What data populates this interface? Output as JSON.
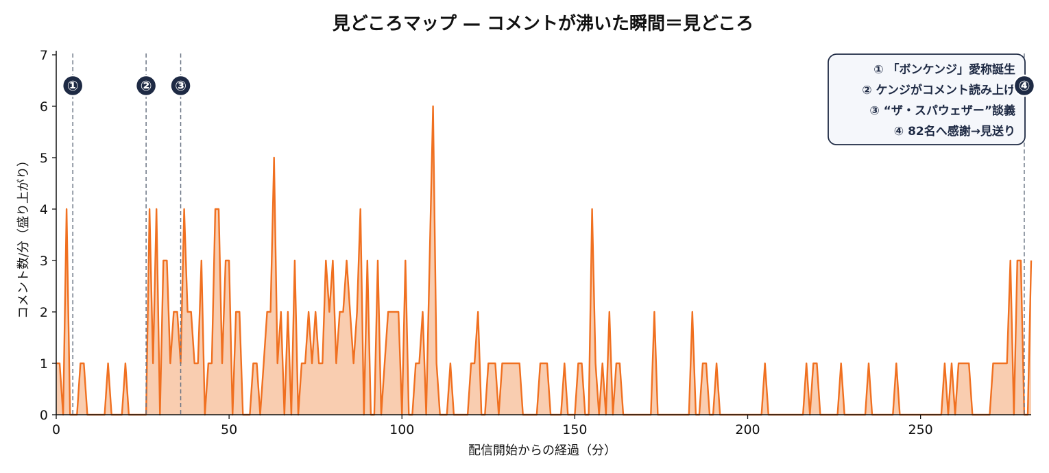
{
  "chart_data": {
    "type": "area",
    "title": "見どころマップ — コメントが沸いた瞬間＝見どころ",
    "xlabel": "配信開始からの経過（分）",
    "ylabel": "コメント数/分（盛り上がり）",
    "xlim": [
      0,
      282
    ],
    "ylim": [
      0,
      7
    ],
    "xticks": [
      0,
      50,
      100,
      150,
      200,
      250
    ],
    "yticks": [
      0,
      1,
      2,
      3,
      4,
      5,
      6,
      7
    ],
    "grid": false,
    "legend_position": "top-right",
    "line_color": "#f07020",
    "fill_color": "#f9cdb0",
    "marker_color": "#1e2a44",
    "series": [
      {
        "x": [
          0,
          1,
          2,
          3,
          4,
          5,
          6,
          7,
          8,
          9,
          10,
          11,
          12,
          13,
          14,
          15,
          16,
          17,
          18,
          19,
          20,
          21,
          22,
          23,
          24,
          25,
          26,
          27,
          28,
          29,
          30,
          31,
          32,
          33,
          34,
          35,
          36,
          37,
          38,
          39,
          40,
          41,
          42,
          43,
          44,
          45,
          46,
          47,
          48,
          49,
          50,
          51,
          52,
          53,
          54,
          55,
          56,
          57,
          58,
          59,
          60,
          61,
          62,
          63,
          64,
          65,
          66,
          67,
          68,
          69,
          70,
          71,
          72,
          73,
          74,
          75,
          76,
          77,
          78,
          79,
          80,
          81,
          82,
          83,
          84,
          85,
          86,
          87,
          88,
          89,
          90,
          91,
          92,
          93,
          94,
          95,
          96,
          97,
          98,
          99,
          100,
          101,
          102,
          103,
          104,
          105,
          106,
          107,
          108,
          109,
          110,
          111,
          112,
          113,
          114,
          115,
          116,
          117,
          118,
          119,
          120,
          121,
          122,
          123,
          124,
          125,
          126,
          127,
          128,
          129,
          130,
          131,
          132,
          133,
          134,
          135,
          136,
          137,
          138,
          139,
          140,
          141,
          142,
          143,
          144,
          145,
          146,
          147,
          148,
          149,
          150,
          151,
          152,
          153,
          154,
          155,
          156,
          157,
          158,
          159,
          160,
          161,
          162,
          163,
          164,
          165,
          166,
          167,
          168,
          169,
          170,
          171,
          172,
          173,
          174,
          175,
          176,
          177,
          178,
          179,
          180,
          181,
          182,
          183,
          184,
          185,
          186,
          187,
          188,
          189,
          190,
          191,
          192,
          193,
          194,
          195,
          196,
          197,
          198,
          199,
          200,
          201,
          202,
          203,
          204,
          205,
          206,
          207,
          208,
          209,
          210,
          211,
          212,
          213,
          214,
          215,
          216,
          217,
          218,
          219,
          220,
          221,
          222,
          223,
          224,
          225,
          226,
          227,
          228,
          229,
          230,
          231,
          232,
          233,
          234,
          235,
          236,
          237,
          238,
          239,
          240,
          241,
          242,
          243,
          244,
          245,
          246,
          247,
          248,
          249,
          250,
          251,
          252,
          253,
          254,
          255,
          256,
          257,
          258,
          259,
          260,
          261,
          262,
          263,
          264,
          265,
          266,
          267,
          268,
          269,
          270,
          271,
          272,
          273,
          274,
          275,
          276,
          277,
          278,
          279,
          280,
          281,
          282
        ],
        "y": [
          1,
          1,
          0,
          4,
          0,
          0,
          0,
          1,
          1,
          0,
          0,
          0,
          0,
          0,
          0,
          1,
          0,
          0,
          0,
          0,
          1,
          0,
          0,
          0,
          0,
          0,
          0,
          4,
          1,
          4,
          0,
          3,
          3,
          1,
          2,
          2,
          1,
          4,
          2,
          2,
          1,
          1,
          3,
          0,
          1,
          1,
          4,
          4,
          1,
          3,
          3,
          0,
          2,
          2,
          0,
          0,
          0,
          1,
          1,
          0,
          1,
          2,
          2,
          5,
          1,
          2,
          0,
          2,
          0,
          3,
          0,
          1,
          1,
          2,
          1,
          2,
          1,
          1,
          3,
          2,
          3,
          1,
          2,
          2,
          3,
          2,
          1,
          2,
          4,
          0,
          3,
          0,
          0,
          3,
          0,
          1,
          2,
          2,
          2,
          2,
          0,
          3,
          0,
          0,
          1,
          1,
          2,
          0,
          3,
          6,
          1,
          0,
          0,
          0,
          1,
          0,
          0,
          0,
          0,
          0,
          1,
          1,
          2,
          0,
          0,
          1,
          1,
          1,
          0,
          1,
          1,
          1,
          1,
          1,
          1,
          0,
          0,
          0,
          0,
          0,
          1,
          1,
          1,
          0,
          0,
          0,
          0,
          1,
          0,
          0,
          0,
          1,
          1,
          0,
          0,
          4,
          1,
          0,
          1,
          0,
          2,
          0,
          1,
          1,
          0,
          0,
          0,
          0,
          0,
          0,
          0,
          0,
          0,
          2,
          0,
          0,
          0,
          0,
          0,
          0,
          0,
          0,
          0,
          0,
          2,
          0,
          0,
          1,
          1,
          0,
          0,
          1,
          0,
          0,
          0,
          0,
          0,
          0,
          0,
          0,
          0,
          0,
          0,
          0,
          0,
          1,
          0,
          0,
          0,
          0,
          0,
          0,
          0,
          0,
          0,
          0,
          0,
          1,
          0,
          1,
          1,
          0,
          0,
          0,
          0,
          0,
          0,
          1,
          0,
          0,
          0,
          0,
          0,
          0,
          0,
          1,
          0,
          0,
          0,
          0,
          0,
          0,
          0,
          1,
          0,
          0,
          0,
          0,
          0,
          0,
          0,
          0,
          0,
          0,
          0,
          0,
          0,
          1,
          0,
          1,
          0,
          1,
          1,
          1,
          1,
          0,
          0,
          0,
          0,
          0,
          0,
          1,
          1,
          1,
          1,
          1,
          3,
          0,
          3,
          3,
          0,
          0,
          3
        ]
      }
    ],
    "highlights": [
      {
        "id": "1",
        "x": 4.8,
        "symbol": "①",
        "label": "① 「ボンケンジ」愛称誕生"
      },
      {
        "id": "2",
        "x": 26,
        "symbol": "②",
        "label": "② ケンジがコメント読み上げ"
      },
      {
        "id": "3",
        "x": 36,
        "symbol": "③",
        "label": "③ “ザ・スパウェザー”談義"
      },
      {
        "id": "4",
        "x": 280,
        "symbol": "④",
        "label": "④ 82名へ感謝→見送り"
      }
    ]
  }
}
